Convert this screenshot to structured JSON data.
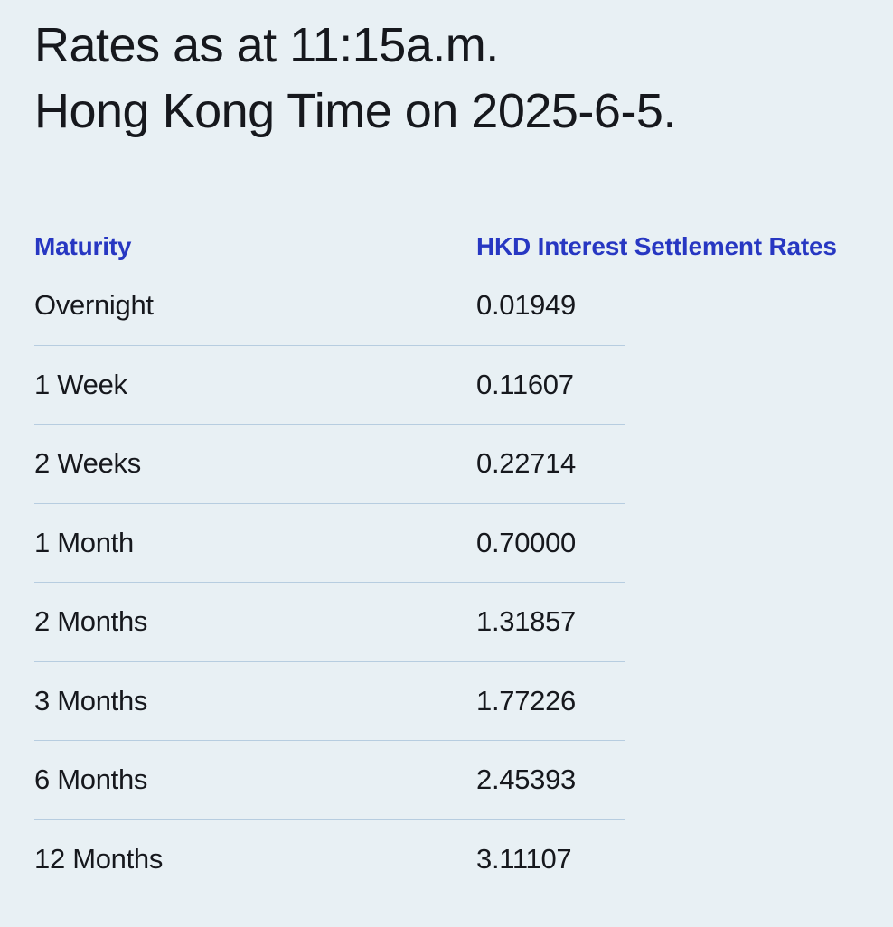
{
  "page": {
    "title_line1": "Rates as at 11:15a.m.",
    "title_line2": "Hong Kong Time on 2025-6-5."
  },
  "table": {
    "columns": [
      "Maturity",
      "HKD Interest Settlement Rates"
    ],
    "rows": [
      {
        "maturity": "Overnight",
        "rate": "0.01949"
      },
      {
        "maturity": "1 Week",
        "rate": "0.11607"
      },
      {
        "maturity": "2 Weeks",
        "rate": "0.22714"
      },
      {
        "maturity": "1 Month",
        "rate": "0.70000"
      },
      {
        "maturity": "2 Months",
        "rate": "1.31857"
      },
      {
        "maturity": "3 Months",
        "rate": "1.77226"
      },
      {
        "maturity": "6 Months",
        "rate": "2.45393"
      },
      {
        "maturity": "12 Months",
        "rate": "3.11107"
      }
    ]
  },
  "colors": {
    "background": "#e8f0f4",
    "accent_header": "#2737c2",
    "body_text": "#16181d",
    "divider": "#b7cde0"
  }
}
